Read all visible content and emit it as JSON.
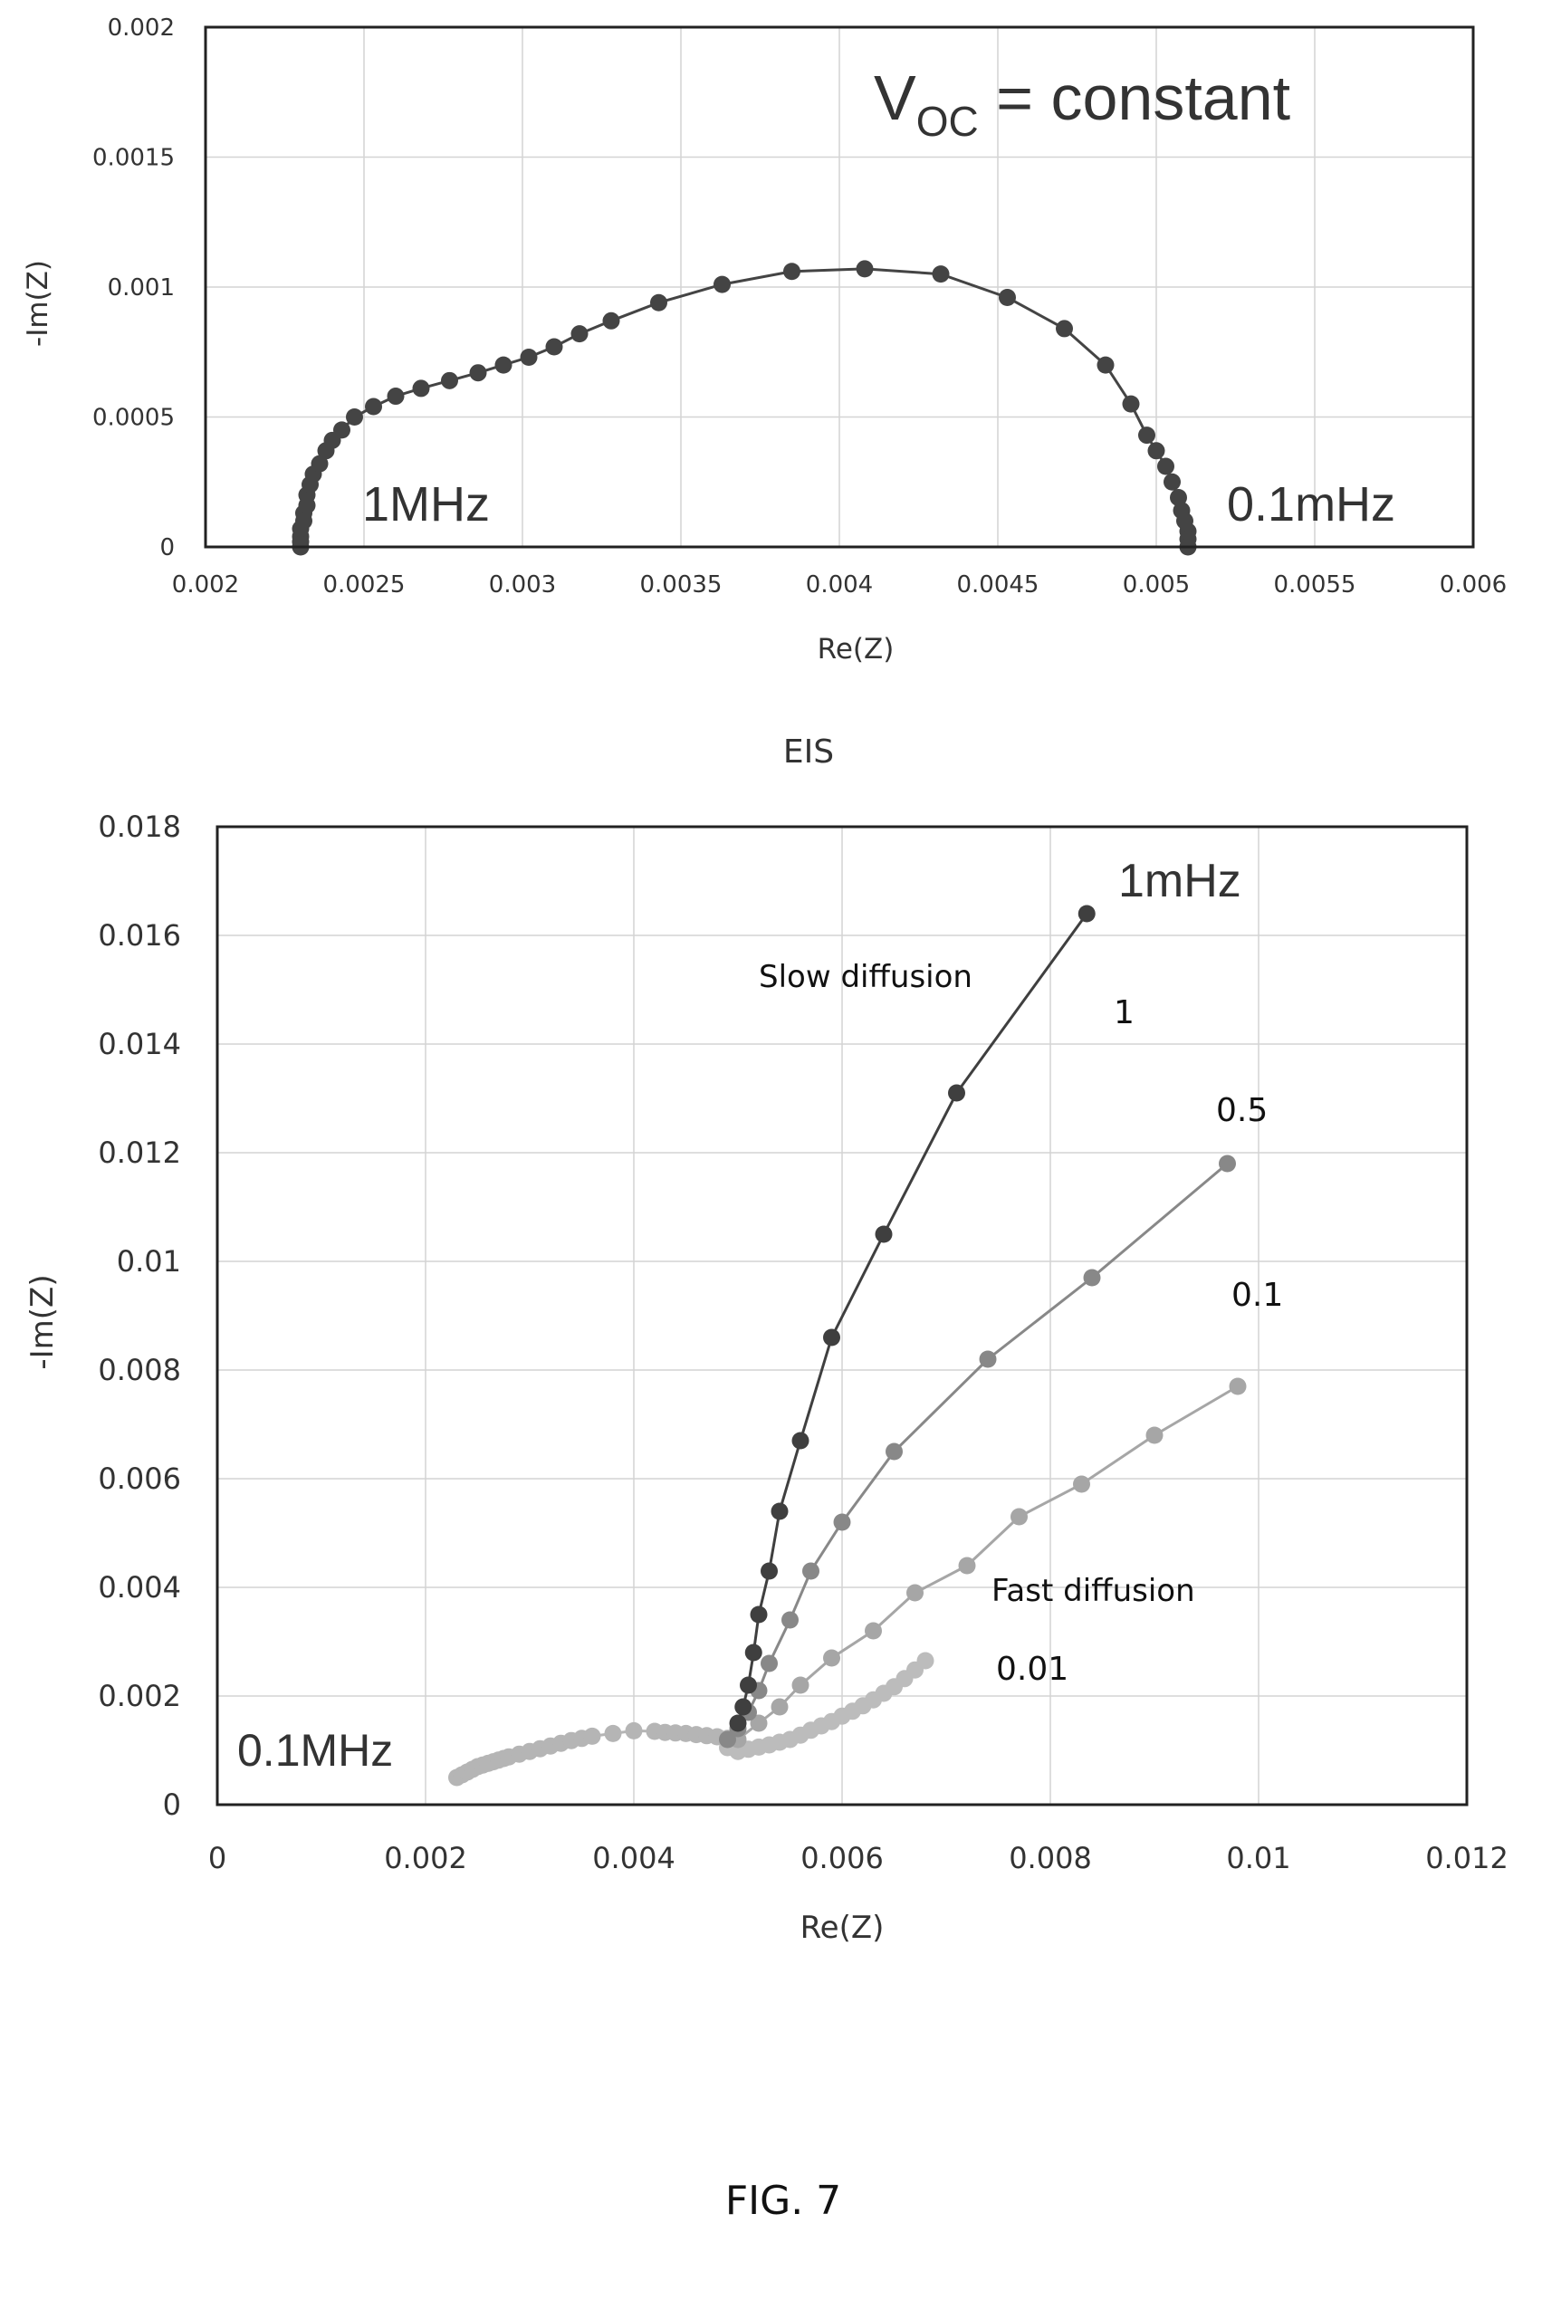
{
  "caption": "FIG. 7",
  "chart_data": [
    {
      "type": "scatter",
      "title": "",
      "xlabel": "Re(Z)",
      "ylabel": "-Im(Z)",
      "xlim": [
        0.002,
        0.006
      ],
      "ylim": [
        0,
        0.002
      ],
      "grid": true,
      "x_ticks": [
        "0.002",
        "0.0025",
        "0.003",
        "0.0035",
        "0.004",
        "0.0045",
        "0.005",
        "0.0055",
        "0.006"
      ],
      "y_ticks": [
        "0",
        "0.0005",
        "0.001",
        "0.0015",
        "0.002"
      ],
      "annotations": {
        "voc_main": "V",
        "voc_sub": "OC",
        "voc_rest": " = constant",
        "low_freq": "0.1mHz",
        "high_freq": "1MHz"
      },
      "series": [
        {
          "color": "#444444",
          "x": [
            0.0023,
            0.0023,
            0.0023,
            0.0023,
            0.00231,
            0.00231,
            0.00232,
            0.00232,
            0.00233,
            0.00234,
            0.00236,
            0.00238,
            0.0024,
            0.00243,
            0.00247,
            0.00253,
            0.0026,
            0.00268,
            0.00277,
            0.00286,
            0.00294,
            0.00302,
            0.0031,
            0.00318,
            0.00328,
            0.00343,
            0.00363,
            0.00385,
            0.00408,
            0.00432,
            0.00453,
            0.00471,
            0.00484,
            0.00492,
            0.00497,
            0.005,
            0.00503,
            0.00505,
            0.00507,
            0.00508,
            0.00509,
            0.0051,
            0.0051,
            0.0051
          ],
          "y": [
            0,
            2e-05,
            4e-05,
            7e-05,
            0.0001,
            0.00013,
            0.00016,
            0.0002,
            0.00024,
            0.00028,
            0.00032,
            0.00037,
            0.00041,
            0.00045,
            0.0005,
            0.00054,
            0.00058,
            0.00061,
            0.00064,
            0.00067,
            0.0007,
            0.00073,
            0.00077,
            0.00082,
            0.00087,
            0.00094,
            0.00101,
            0.00106,
            0.00107,
            0.00105,
            0.00096,
            0.00084,
            0.0007,
            0.00055,
            0.00043,
            0.00037,
            0.00031,
            0.00025,
            0.00019,
            0.00014,
            0.0001,
            6e-05,
            3e-05,
            0
          ]
        }
      ]
    },
    {
      "type": "scatter",
      "title": "EIS",
      "xlabel": "Re(Z)",
      "ylabel": "-Im(Z)",
      "xlim": [
        0,
        0.012
      ],
      "ylim": [
        0,
        0.018
      ],
      "grid": true,
      "x_ticks": [
        "0",
        "0.002",
        "0.004",
        "0.006",
        "0.008",
        "0.01",
        "0.012"
      ],
      "y_ticks": [
        "0",
        "0.002",
        "0.004",
        "0.006",
        "0.008",
        "0.01",
        "0.012",
        "0.014",
        "0.016",
        "0.018"
      ],
      "annotations": {
        "top_freq": "1mHz",
        "high_freq": "0.1MHz",
        "slow": "Slow diffusion",
        "fast": "Fast diffusion",
        "label_1": "1",
        "label_05": "0.5",
        "label_01": "0.1",
        "label_001": "0.01"
      },
      "shared_start": {
        "color": "#b5b5b5",
        "x": [
          0.0023,
          0.00235,
          0.0024,
          0.00245,
          0.0025,
          0.00255,
          0.0026,
          0.00265,
          0.0027,
          0.00275,
          0.0028,
          0.0029,
          0.003,
          0.0031,
          0.0032,
          0.0033,
          0.0034,
          0.0035,
          0.0036,
          0.0038,
          0.004,
          0.0042,
          0.0043,
          0.0044,
          0.0045,
          0.0046,
          0.0047,
          0.0048,
          0.0049
        ],
        "y": [
          0.0005,
          0.00055,
          0.0006,
          0.00065,
          0.0007,
          0.00073,
          0.00076,
          0.00079,
          0.00082,
          0.00085,
          0.00088,
          0.00093,
          0.00098,
          0.00103,
          0.00108,
          0.00113,
          0.00118,
          0.00122,
          0.00126,
          0.00131,
          0.00136,
          0.00135,
          0.00133,
          0.00132,
          0.00131,
          0.00129,
          0.00127,
          0.00125,
          0.00122
        ]
      },
      "series": [
        {
          "name": "1",
          "color": "#3f3f3f",
          "x": [
            0.005,
            0.00505,
            0.0051,
            0.00515,
            0.0052,
            0.0053,
            0.0054,
            0.0056,
            0.0059,
            0.0064,
            0.0071,
            0.00835
          ],
          "y": [
            0.0015,
            0.0018,
            0.0022,
            0.0028,
            0.0035,
            0.0043,
            0.0054,
            0.0067,
            0.0086,
            0.0105,
            0.0131,
            0.0164
          ]
        },
        {
          "name": "0.5",
          "color": "#888888",
          "x": [
            0.0049,
            0.005,
            0.0051,
            0.0052,
            0.0053,
            0.0055,
            0.0057,
            0.006,
            0.0065,
            0.0074,
            0.0084,
            0.0097
          ],
          "y": [
            0.0012,
            0.0014,
            0.0017,
            0.0021,
            0.0026,
            0.0034,
            0.0043,
            0.0052,
            0.0065,
            0.0082,
            0.0097,
            0.0118
          ]
        },
        {
          "name": "0.1",
          "color": "#a6a6a6",
          "x": [
            0.005,
            0.0052,
            0.0054,
            0.0056,
            0.0059,
            0.0063,
            0.0067,
            0.0072,
            0.0077,
            0.0083,
            0.009,
            0.0098
          ],
          "y": [
            0.0012,
            0.0015,
            0.0018,
            0.0022,
            0.0027,
            0.0032,
            0.0039,
            0.0044,
            0.0053,
            0.0059,
            0.0068,
            0.0077
          ]
        },
        {
          "name": "0.01",
          "color": "#bcbcbc",
          "x": [
            0.0049,
            0.005,
            0.0051,
            0.0052,
            0.0053,
            0.0054,
            0.0055,
            0.0056,
            0.0057,
            0.0058,
            0.0059,
            0.006,
            0.0061,
            0.0062,
            0.0063,
            0.0064,
            0.0065,
            0.0066,
            0.0067,
            0.0068
          ],
          "y": [
            0.00105,
            0.00098,
            0.00102,
            0.00106,
            0.0011,
            0.00115,
            0.0012,
            0.00128,
            0.00137,
            0.00145,
            0.00153,
            0.00163,
            0.00172,
            0.00182,
            0.00193,
            0.00205,
            0.00217,
            0.00232,
            0.00248,
            0.00265
          ]
        }
      ]
    }
  ]
}
